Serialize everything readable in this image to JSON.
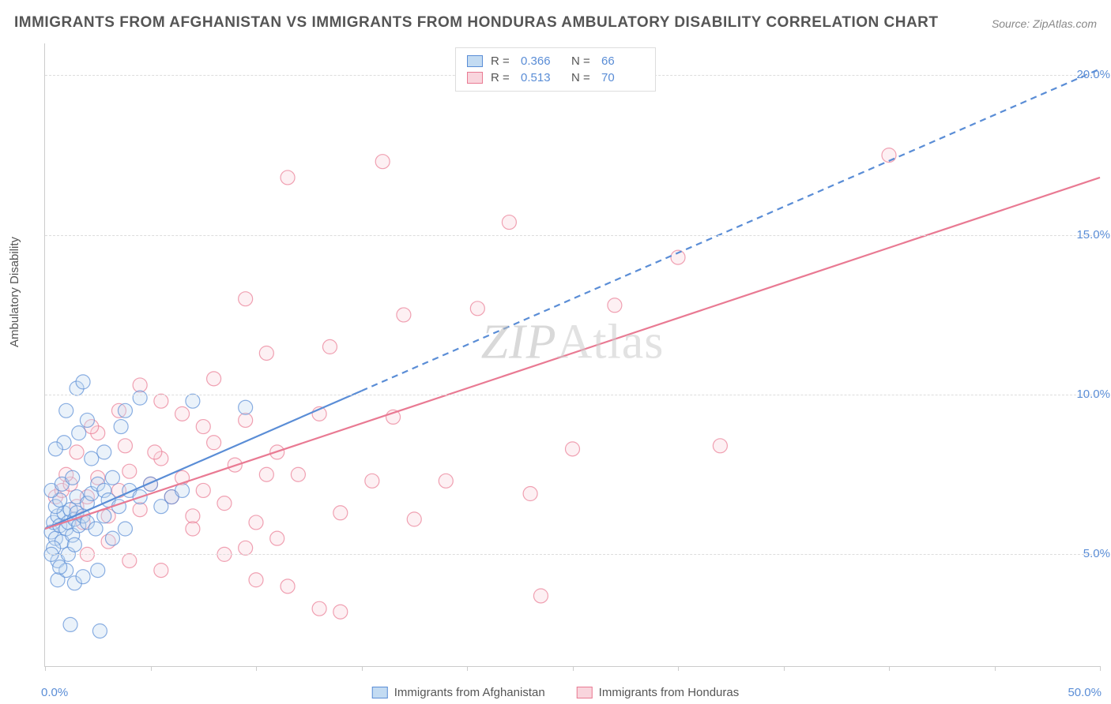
{
  "title": "IMMIGRANTS FROM AFGHANISTAN VS IMMIGRANTS FROM HONDURAS AMBULATORY DISABILITY CORRELATION CHART",
  "source": "Source: ZipAtlas.com",
  "watermark": {
    "zip": "ZIP",
    "atlas": "Atlas"
  },
  "y_axis": {
    "label": "Ambulatory Disability"
  },
  "chart": {
    "type": "scatter",
    "xlim": [
      0,
      50
    ],
    "ylim": [
      1.5,
      21
    ],
    "x_ticks": [
      0,
      5,
      10,
      15,
      20,
      25,
      30,
      35,
      40,
      45,
      50
    ],
    "x_tick_labels": {
      "0": "0.0%",
      "50": "50.0%"
    },
    "y_ticks": [
      5,
      10,
      15,
      20
    ],
    "y_tick_labels": {
      "5": "5.0%",
      "10": "10.0%",
      "15": "15.0%",
      "20": "20.0%"
    },
    "grid_color": "#dddddd",
    "background_color": "#ffffff",
    "marker_radius": 9,
    "marker_fill_opacity": 0.35,
    "marker_stroke_width": 1.2
  },
  "series": {
    "afghanistan": {
      "label": "Immigrants from Afghanistan",
      "color": "#5a8dd6",
      "fill": "#c3dbf2",
      "R": "0.366",
      "N": "66",
      "trend": {
        "x1": 0,
        "y1": 5.8,
        "x2": 50,
        "y2": 20.2,
        "solid_until_x": 15,
        "stroke_width": 2.2
      },
      "points": [
        [
          0.3,
          5.7
        ],
        [
          0.4,
          6.0
        ],
        [
          0.5,
          5.5
        ],
        [
          0.6,
          6.2
        ],
        [
          0.7,
          5.9
        ],
        [
          0.8,
          5.4
        ],
        [
          0.9,
          6.3
        ],
        [
          1.0,
          5.8
        ],
        [
          0.4,
          5.2
        ],
        [
          0.6,
          4.8
        ],
        [
          1.1,
          6.0
        ],
        [
          1.2,
          6.4
        ],
        [
          1.3,
          5.6
        ],
        [
          1.4,
          6.1
        ],
        [
          0.5,
          6.5
        ],
        [
          0.7,
          6.7
        ],
        [
          1.5,
          6.3
        ],
        [
          1.6,
          5.9
        ],
        [
          0.3,
          7.0
        ],
        [
          0.8,
          7.2
        ],
        [
          1.3,
          7.4
        ],
        [
          0.9,
          8.5
        ],
        [
          1.5,
          6.8
        ],
        [
          1.8,
          6.2
        ],
        [
          2.0,
          6.6
        ],
        [
          2.2,
          6.9
        ],
        [
          2.5,
          7.2
        ],
        [
          2.8,
          7.0
        ],
        [
          3.0,
          6.7
        ],
        [
          3.2,
          7.4
        ],
        [
          3.5,
          6.5
        ],
        [
          0.6,
          4.2
        ],
        [
          1.0,
          4.5
        ],
        [
          1.4,
          4.1
        ],
        [
          1.8,
          4.3
        ],
        [
          2.5,
          4.5
        ],
        [
          1.2,
          2.8
        ],
        [
          2.6,
          2.6
        ],
        [
          0.5,
          8.3
        ],
        [
          1.6,
          8.8
        ],
        [
          1.0,
          9.5
        ],
        [
          1.5,
          10.2
        ],
        [
          2.2,
          8.0
        ],
        [
          2.8,
          8.2
        ],
        [
          3.6,
          9.0
        ],
        [
          4.0,
          7.0
        ],
        [
          4.5,
          6.8
        ],
        [
          5.0,
          7.2
        ],
        [
          5.5,
          6.5
        ],
        [
          6.0,
          6.8
        ],
        [
          6.5,
          7.0
        ],
        [
          3.8,
          9.5
        ],
        [
          4.5,
          9.9
        ],
        [
          7.0,
          9.8
        ],
        [
          9.5,
          9.6
        ],
        [
          1.8,
          10.4
        ],
        [
          2.0,
          6.0
        ],
        [
          2.4,
          5.8
        ],
        [
          2.8,
          6.2
        ],
        [
          3.2,
          5.5
        ],
        [
          3.8,
          5.8
        ],
        [
          2.0,
          9.2
        ],
        [
          0.3,
          5.0
        ],
        [
          0.7,
          4.6
        ],
        [
          1.1,
          5.0
        ],
        [
          1.4,
          5.3
        ]
      ]
    },
    "honduras": {
      "label": "Immigrants from Honduras",
      "color": "#e97a93",
      "fill": "#f9d5dd",
      "R": "0.513",
      "N": "70",
      "trend": {
        "x1": 0,
        "y1": 5.8,
        "x2": 50,
        "y2": 16.8,
        "stroke_width": 2.2
      },
      "points": [
        [
          0.5,
          6.8
        ],
        [
          0.8,
          7.0
        ],
        [
          1.2,
          7.2
        ],
        [
          1.5,
          6.5
        ],
        [
          1.8,
          6.0
        ],
        [
          2.0,
          6.8
        ],
        [
          2.5,
          7.4
        ],
        [
          3.0,
          6.2
        ],
        [
          3.5,
          7.0
        ],
        [
          4.0,
          7.6
        ],
        [
          4.5,
          6.4
        ],
        [
          5.0,
          7.2
        ],
        [
          5.5,
          8.0
        ],
        [
          6.0,
          6.8
        ],
        [
          6.5,
          7.4
        ],
        [
          7.0,
          6.2
        ],
        [
          7.5,
          7.0
        ],
        [
          8.0,
          8.5
        ],
        [
          8.5,
          6.6
        ],
        [
          9.0,
          7.8
        ],
        [
          9.5,
          5.2
        ],
        [
          10.0,
          6.0
        ],
        [
          10.5,
          7.5
        ],
        [
          11.0,
          5.5
        ],
        [
          2.0,
          5.0
        ],
        [
          3.0,
          5.4
        ],
        [
          4.0,
          4.8
        ],
        [
          5.5,
          4.5
        ],
        [
          7.0,
          5.8
        ],
        [
          8.5,
          5.0
        ],
        [
          10.0,
          4.2
        ],
        [
          11.5,
          4.0
        ],
        [
          13.0,
          3.3
        ],
        [
          14.0,
          3.2
        ],
        [
          2.5,
          8.8
        ],
        [
          3.5,
          9.5
        ],
        [
          4.5,
          10.3
        ],
        [
          5.5,
          9.8
        ],
        [
          6.5,
          9.4
        ],
        [
          7.5,
          9.0
        ],
        [
          8.0,
          10.5
        ],
        [
          9.5,
          9.2
        ],
        [
          10.5,
          11.3
        ],
        [
          12.0,
          7.5
        ],
        [
          13.0,
          9.4
        ],
        [
          14.0,
          6.3
        ],
        [
          15.5,
          7.3
        ],
        [
          16.5,
          9.3
        ],
        [
          17.5,
          6.1
        ],
        [
          17.0,
          12.5
        ],
        [
          19.0,
          7.3
        ],
        [
          20.5,
          12.7
        ],
        [
          22.0,
          15.4
        ],
        [
          9.5,
          13.0
        ],
        [
          11.5,
          16.8
        ],
        [
          16.0,
          17.3
        ],
        [
          23.0,
          6.9
        ],
        [
          25.0,
          8.3
        ],
        [
          27.0,
          12.8
        ],
        [
          30.0,
          14.3
        ],
        [
          32.0,
          8.4
        ],
        [
          23.5,
          3.7
        ],
        [
          40.0,
          17.5
        ],
        [
          1.0,
          7.5
        ],
        [
          1.5,
          8.2
        ],
        [
          2.2,
          9.0
        ],
        [
          3.8,
          8.4
        ],
        [
          5.2,
          8.2
        ],
        [
          13.5,
          11.5
        ],
        [
          11.0,
          8.2
        ]
      ]
    }
  },
  "legend_top": {
    "R_label": "R =",
    "N_label": "N ="
  }
}
